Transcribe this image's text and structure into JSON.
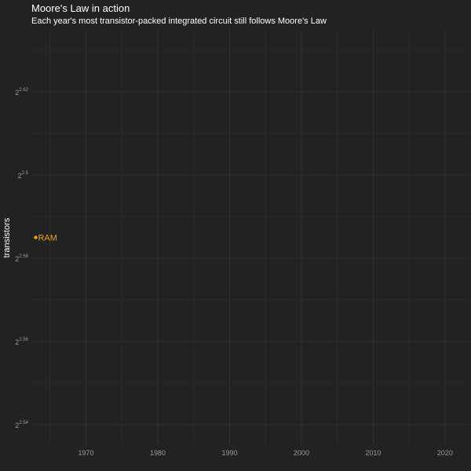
{
  "chart_data": {
    "type": "scatter",
    "title": "Moore's Law in action",
    "subtitle": "Each year's most transistor-packed integrated circuit still follows Moore's Law",
    "xlabel": "",
    "ylabel": "transistors",
    "x_ticks": [
      1970,
      1980,
      1990,
      2000,
      2010,
      2020
    ],
    "xlim": [
      1962.4,
      2023.4
    ],
    "y_scale": "log2 (values shown as 2 raised to exponent)",
    "y_ticks": [
      {
        "base": "2",
        "exponent": "2.54"
      },
      {
        "base": "2",
        "exponent": "2.56"
      },
      {
        "base": "2",
        "exponent": "2.58"
      },
      {
        "base": "2",
        "exponent": "2.5"
      },
      {
        "base": "2",
        "exponent": "2.62"
      }
    ],
    "grid": true,
    "legend": "none",
    "point_color": "#f0a30a",
    "points": [
      {
        "label": "RAM",
        "x": 1963,
        "y_exponent": 2.585
      }
    ]
  }
}
